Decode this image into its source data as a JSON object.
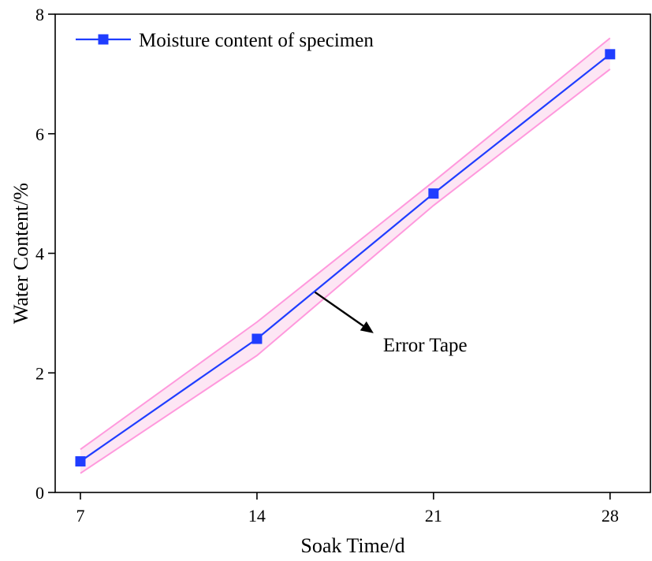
{
  "chart_data": {
    "type": "line",
    "title": "",
    "xlabel": "Soak Time/d",
    "ylabel": "Water Content/%",
    "x": [
      7,
      14,
      21,
      28
    ],
    "xlim": [
      6,
      29.6
    ],
    "ylim": [
      0,
      8
    ],
    "xticks": [
      7,
      14,
      21,
      28
    ],
    "yticks": [
      0,
      2,
      4,
      6,
      8
    ],
    "x_tick_labels": [
      "7",
      "14",
      "21",
      "28"
    ],
    "y_tick_labels": [
      "0",
      "2",
      "4",
      "6",
      "8"
    ],
    "grid": false,
    "legend_position": "top-left",
    "series": [
      {
        "name": "Moisture content of specimen",
        "values": [
          0.52,
          2.57,
          5.0,
          7.33
        ],
        "color": "#1f3dff",
        "marker": "square",
        "error_band": {
          "upper": [
            0.72,
            2.85,
            5.2,
            7.6
          ],
          "lower": [
            0.32,
            2.29,
            4.8,
            7.08
          ],
          "color": "#ff99dd",
          "fill": "#fde6f4"
        }
      }
    ],
    "annotations": [
      {
        "text": "Error Tape",
        "x": 16.3,
        "y": 3.35,
        "label_x": 19.0,
        "label_y": 2.48
      }
    ]
  }
}
